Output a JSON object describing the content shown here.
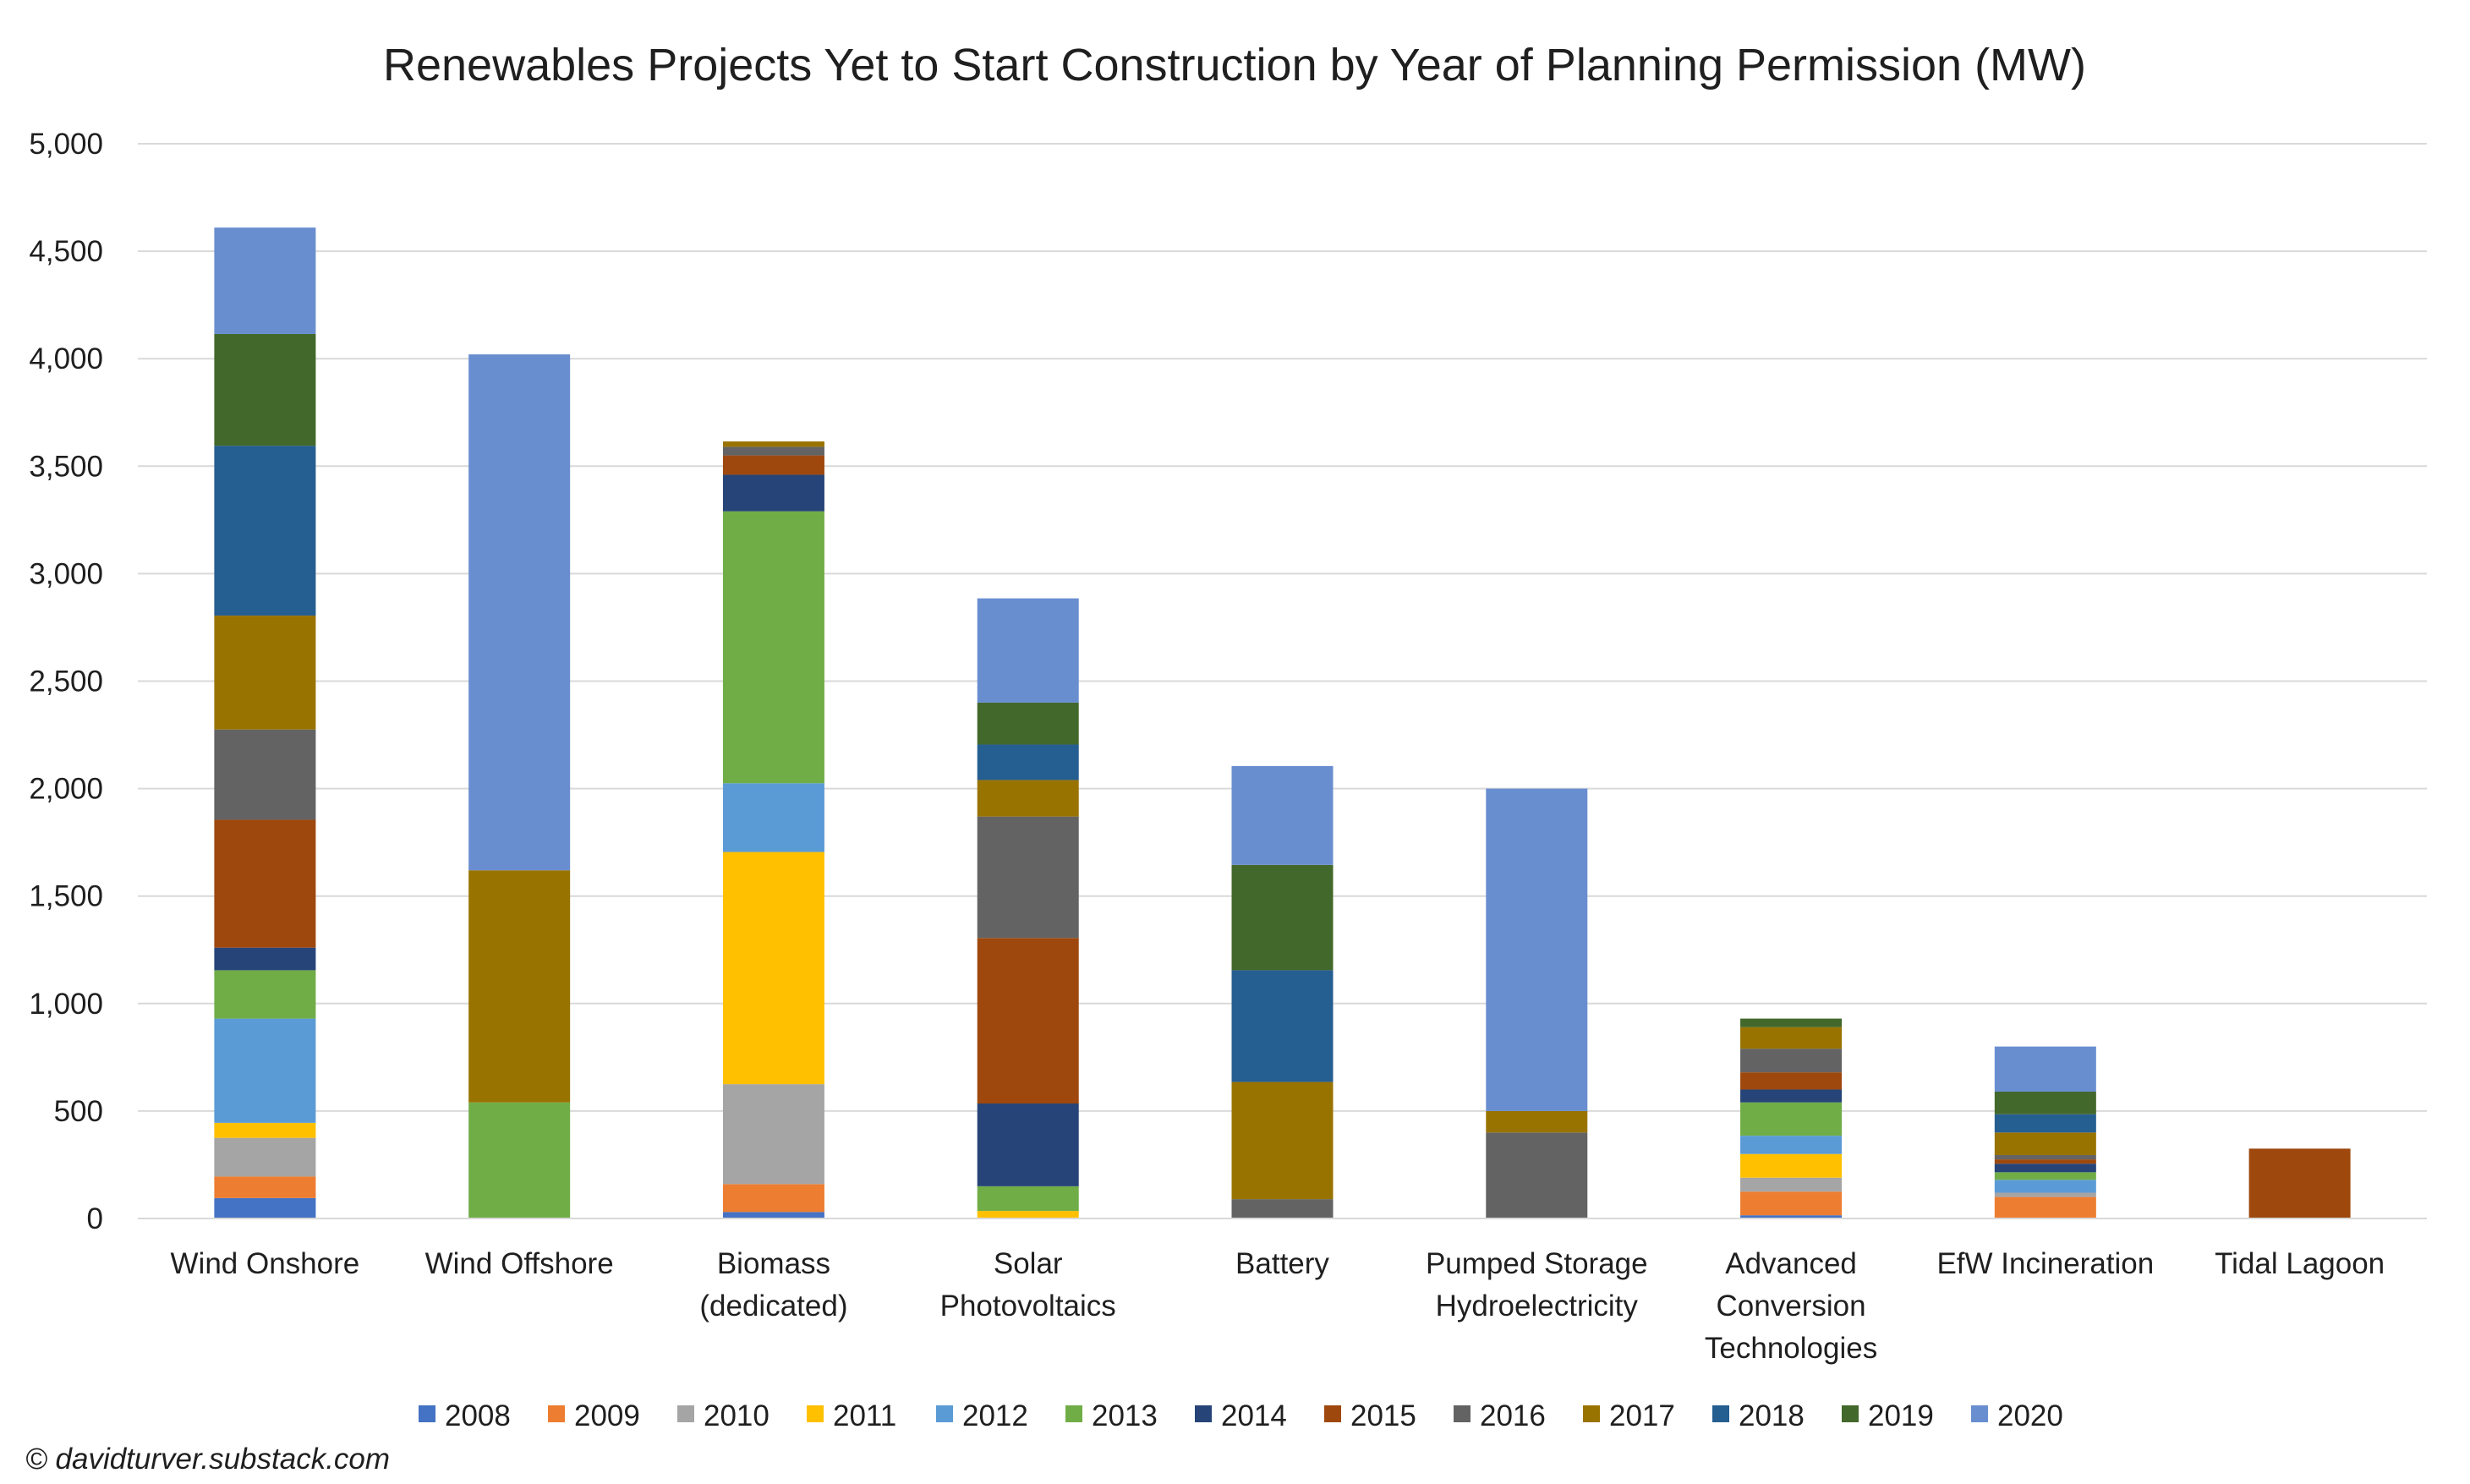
{
  "copyright": "© davidturver.substack.com",
  "chart_data": {
    "type": "bar",
    "stacked": true,
    "title": "Renewables Projects Yet to Start Construction by Year of Planning Permission (MW)",
    "xlabel": "",
    "ylabel": "",
    "ylim": [
      0,
      5000
    ],
    "yticks": [
      0,
      500,
      1000,
      1500,
      2000,
      2500,
      3000,
      3500,
      4000,
      4500,
      5000
    ],
    "ytick_labels": [
      "0",
      "500",
      "1,000",
      "1,500",
      "2,000",
      "2,500",
      "3,000",
      "3,500",
      "4,000",
      "4,500",
      "5,000"
    ],
    "grid": true,
    "legend_position": "bottom",
    "categories": [
      [
        "Wind Onshore"
      ],
      [
        "Wind Offshore"
      ],
      [
        "Biomass",
        "(dedicated)"
      ],
      [
        "Solar",
        "Photovoltaics"
      ],
      [
        "Battery"
      ],
      [
        "Pumped Storage",
        "Hydroelectricity"
      ],
      [
        "Advanced",
        "Conversion",
        "Technologies"
      ],
      [
        "EfW Incineration"
      ],
      [
        "Tidal Lagoon"
      ]
    ],
    "series": [
      {
        "name": "2008",
        "color": "#4472c4",
        "values": [
          95,
          0,
          30,
          0,
          0,
          0,
          15,
          0,
          0
        ]
      },
      {
        "name": "2009",
        "color": "#ed7d31",
        "values": [
          100,
          0,
          130,
          0,
          0,
          0,
          110,
          100,
          0
        ]
      },
      {
        "name": "2010",
        "color": "#a5a5a5",
        "values": [
          180,
          0,
          465,
          0,
          0,
          0,
          65,
          20,
          0
        ]
      },
      {
        "name": "2011",
        "color": "#ffc000",
        "values": [
          70,
          0,
          1080,
          35,
          0,
          0,
          110,
          0,
          0
        ]
      },
      {
        "name": "2012",
        "color": "#5b9bd5",
        "values": [
          485,
          0,
          320,
          0,
          0,
          0,
          85,
          60,
          0
        ]
      },
      {
        "name": "2013",
        "color": "#70ad47",
        "values": [
          225,
          540,
          1265,
          115,
          0,
          0,
          155,
          35,
          0
        ]
      },
      {
        "name": "2014",
        "color": "#264478",
        "values": [
          105,
          0,
          170,
          385,
          0,
          0,
          60,
          40,
          0
        ]
      },
      {
        "name": "2015",
        "color": "#9e480e",
        "values": [
          595,
          0,
          90,
          770,
          0,
          0,
          80,
          20,
          325
        ]
      },
      {
        "name": "2016",
        "color": "#636363",
        "values": [
          420,
          0,
          40,
          565,
          90,
          400,
          110,
          20,
          0
        ]
      },
      {
        "name": "2017",
        "color": "#997300",
        "values": [
          530,
          1080,
          25,
          170,
          545,
          100,
          100,
          105,
          0
        ]
      },
      {
        "name": "2018",
        "color": "#255e91",
        "values": [
          790,
          0,
          0,
          165,
          520,
          0,
          0,
          85,
          0
        ]
      },
      {
        "name": "2019",
        "color": "#43682b",
        "values": [
          520,
          0,
          0,
          195,
          490,
          0,
          40,
          105,
          0
        ]
      },
      {
        "name": "2020",
        "color": "#698ed0",
        "values": [
          495,
          2400,
          0,
          485,
          460,
          1500,
          0,
          210,
          0
        ]
      }
    ]
  }
}
